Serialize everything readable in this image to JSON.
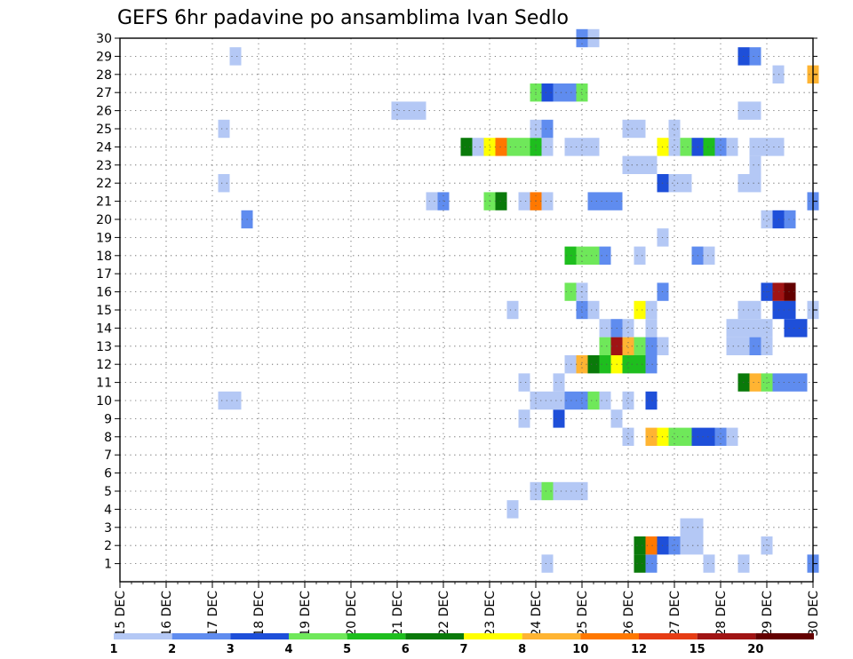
{
  "chart_data": {
    "type": "heatmap",
    "title": "GEFS 6hr padavine po ansamblima Ivan Sedlo",
    "xlabel": "",
    "ylabel": "",
    "x_ticks": [
      "15 DEC",
      "16 DEC",
      "17 DEC",
      "18 DEC",
      "19 DEC",
      "20 DEC",
      "21 DEC",
      "22 DEC",
      "23 DEC",
      "24 DEC",
      "25 DEC",
      "26 DEC",
      "27 DEC",
      "28 DEC",
      "29 DEC",
      "30 DEC"
    ],
    "y_ticks": [
      "1",
      "2",
      "3",
      "4",
      "5",
      "6",
      "7",
      "8",
      "9",
      "10",
      "11",
      "12",
      "13",
      "14",
      "15",
      "16",
      "17",
      "18",
      "19",
      "20",
      "21",
      "22",
      "23",
      "24",
      "25",
      "26",
      "27",
      "28",
      "29",
      "30"
    ],
    "x_range_steps": [
      0,
      60
    ],
    "steps_per_day": 4,
    "members": [
      1,
      30
    ],
    "grid": true,
    "colorbar": {
      "labels": [
        "1",
        "2",
        "3",
        "4",
        "5",
        "6",
        "7",
        "8",
        "10",
        "12",
        "15",
        "20"
      ],
      "colors": [
        "#b4c8f5",
        "#5f8cef",
        "#1e4fd9",
        "#6fe85a",
        "#1ebe1e",
        "#0a7a0a",
        "#ffff00",
        "#ffb432",
        "#ff7800",
        "#e63c14",
        "#a01414",
        "#640000"
      ]
    },
    "cells": [
      [
        1,
        "#b4c8f5",
        37
      ],
      [
        1,
        "#0a7a0a",
        45
      ],
      [
        1,
        "#5f8cef",
        46
      ],
      [
        1,
        "#b4c8f5",
        51
      ],
      [
        1,
        "#b4c8f5",
        54
      ],
      [
        1,
        "#5f8cef",
        60
      ],
      [
        2,
        "#0a7a0a",
        45
      ],
      [
        2,
        "#ff7800",
        46
      ],
      [
        2,
        "#1e4fd9",
        47
      ],
      [
        2,
        "#5f8cef",
        48
      ],
      [
        2,
        "#b4c8f5",
        49
      ],
      [
        2,
        "#b4c8f5",
        50
      ],
      [
        2,
        "#b4c8f5",
        56
      ],
      [
        3,
        "#b4c8f5",
        49
      ],
      [
        3,
        "#b4c8f5",
        50
      ],
      [
        4,
        "#b4c8f5",
        34
      ],
      [
        5,
        "#b4c8f5",
        36
      ],
      [
        5,
        "#6fe85a",
        37
      ],
      [
        5,
        "#b4c8f5",
        38
      ],
      [
        5,
        "#b4c8f5",
        39
      ],
      [
        5,
        "#b4c8f5",
        40
      ],
      [
        8,
        "#b4c8f5",
        44
      ],
      [
        8,
        "#ffb432",
        46
      ],
      [
        8,
        "#ffff00",
        47
      ],
      [
        8,
        "#6fe85a",
        48
      ],
      [
        8,
        "#6fe85a",
        49
      ],
      [
        8,
        "#1e4fd9",
        50
      ],
      [
        8,
        "#1e4fd9",
        51
      ],
      [
        8,
        "#5f8cef",
        52
      ],
      [
        8,
        "#b4c8f5",
        53
      ],
      [
        9,
        "#b4c8f5",
        35
      ],
      [
        9,
        "#1e4fd9",
        38
      ],
      [
        9,
        "#b4c8f5",
        43
      ],
      [
        10,
        "#b4c8f5",
        9
      ],
      [
        10,
        "#b4c8f5",
        10
      ],
      [
        10,
        "#b4c8f5",
        36
      ],
      [
        10,
        "#b4c8f5",
        37
      ],
      [
        10,
        "#b4c8f5",
        38
      ],
      [
        10,
        "#5f8cef",
        39
      ],
      [
        10,
        "#5f8cef",
        40
      ],
      [
        10,
        "#6fe85a",
        41
      ],
      [
        10,
        "#b4c8f5",
        42
      ],
      [
        10,
        "#b4c8f5",
        44
      ],
      [
        10,
        "#1e4fd9",
        46
      ],
      [
        11,
        "#b4c8f5",
        35
      ],
      [
        11,
        "#b4c8f5",
        38
      ],
      [
        11,
        "#0a7a0a",
        54
      ],
      [
        11,
        "#ffb432",
        55
      ],
      [
        11,
        "#6fe85a",
        56
      ],
      [
        11,
        "#5f8cef",
        57
      ],
      [
        11,
        "#5f8cef",
        58
      ],
      [
        11,
        "#5f8cef",
        59
      ],
      [
        12,
        "#b4c8f5",
        39
      ],
      [
        12,
        "#ffb432",
        40
      ],
      [
        12,
        "#0a7a0a",
        41
      ],
      [
        12,
        "#1ebe1e",
        42
      ],
      [
        12,
        "#ffff00",
        43
      ],
      [
        12,
        "#1ebe1e",
        44
      ],
      [
        12,
        "#1ebe1e",
        45
      ],
      [
        12,
        "#5f8cef",
        46
      ],
      [
        13,
        "#6fe85a",
        42
      ],
      [
        13,
        "#a01414",
        43
      ],
      [
        13,
        "#ffb432",
        44
      ],
      [
        13,
        "#6fe85a",
        45
      ],
      [
        13,
        "#5f8cef",
        46
      ],
      [
        13,
        "#b4c8f5",
        47
      ],
      [
        13,
        "#b4c8f5",
        53
      ],
      [
        13,
        "#b4c8f5",
        54
      ],
      [
        13,
        "#5f8cef",
        55
      ],
      [
        13,
        "#b4c8f5",
        56
      ],
      [
        14,
        "#b4c8f5",
        42
      ],
      [
        14,
        "#5f8cef",
        43
      ],
      [
        14,
        "#b4c8f5",
        44
      ],
      [
        14,
        "#b4c8f5",
        46
      ],
      [
        14,
        "#b4c8f5",
        53
      ],
      [
        14,
        "#b4c8f5",
        54
      ],
      [
        14,
        "#b4c8f5",
        55
      ],
      [
        14,
        "#b4c8f5",
        56
      ],
      [
        14,
        "#1e4fd9",
        58
      ],
      [
        14,
        "#1e4fd9",
        59
      ],
      [
        15,
        "#b4c8f5",
        34
      ],
      [
        15,
        "#5f8cef",
        40
      ],
      [
        15,
        "#b4c8f5",
        41
      ],
      [
        15,
        "#ffff00",
        45
      ],
      [
        15,
        "#b4c8f5",
        46
      ],
      [
        15,
        "#b4c8f5",
        54
      ],
      [
        15,
        "#b4c8f5",
        55
      ],
      [
        15,
        "#1e4fd9",
        57
      ],
      [
        15,
        "#1e4fd9",
        58
      ],
      [
        15,
        "#b4c8f5",
        60
      ],
      [
        16,
        "#6fe85a",
        39
      ],
      [
        16,
        "#b4c8f5",
        40
      ],
      [
        16,
        "#5f8cef",
        47
      ],
      [
        16,
        "#1e4fd9",
        56
      ],
      [
        16,
        "#a01414",
        57
      ],
      [
        16,
        "#640000",
        58
      ],
      [
        18,
        "#1ebe1e",
        39
      ],
      [
        18,
        "#6fe85a",
        40
      ],
      [
        18,
        "#6fe85a",
        41
      ],
      [
        18,
        "#5f8cef",
        42
      ],
      [
        18,
        "#b4c8f5",
        45
      ],
      [
        18,
        "#5f8cef",
        50
      ],
      [
        18,
        "#b4c8f5",
        51
      ],
      [
        19,
        "#b4c8f5",
        47
      ],
      [
        20,
        "#5f8cef",
        11
      ],
      [
        20,
        "#b4c8f5",
        56
      ],
      [
        20,
        "#1e4fd9",
        57
      ],
      [
        20,
        "#5f8cef",
        58
      ],
      [
        21,
        "#b4c8f5",
        27
      ],
      [
        21,
        "#5f8cef",
        28
      ],
      [
        21,
        "#6fe85a",
        32
      ],
      [
        21,
        "#0a7a0a",
        33
      ],
      [
        21,
        "#b4c8f5",
        35
      ],
      [
        21,
        "#ff7800",
        36
      ],
      [
        21,
        "#b4c8f5",
        37
      ],
      [
        21,
        "#5f8cef",
        41
      ],
      [
        21,
        "#5f8cef",
        42
      ],
      [
        21,
        "#5f8cef",
        43
      ],
      [
        21,
        "#5f8cef",
        60
      ],
      [
        22,
        "#b4c8f5",
        9
      ],
      [
        22,
        "#1e4fd9",
        47
      ],
      [
        22,
        "#b4c8f5",
        48
      ],
      [
        22,
        "#b4c8f5",
        49
      ],
      [
        22,
        "#b4c8f5",
        54
      ],
      [
        22,
        "#b4c8f5",
        55
      ],
      [
        23,
        "#b4c8f5",
        44
      ],
      [
        23,
        "#b4c8f5",
        45
      ],
      [
        23,
        "#b4c8f5",
        46
      ],
      [
        23,
        "#b4c8f5",
        55
      ],
      [
        24,
        "#0a7a0a",
        30
      ],
      [
        24,
        "#b4c8f5",
        31
      ],
      [
        24,
        "#ffff00",
        32
      ],
      [
        24,
        "#ff7800",
        33
      ],
      [
        24,
        "#6fe85a",
        34
      ],
      [
        24,
        "#6fe85a",
        35
      ],
      [
        24,
        "#1ebe1e",
        36
      ],
      [
        24,
        "#b4c8f5",
        37
      ],
      [
        24,
        "#b4c8f5",
        39
      ],
      [
        24,
        "#b4c8f5",
        40
      ],
      [
        24,
        "#b4c8f5",
        41
      ],
      [
        24,
        "#ffff00",
        47
      ],
      [
        24,
        "#b4c8f5",
        48
      ],
      [
        24,
        "#6fe85a",
        49
      ],
      [
        24,
        "#1e4fd9",
        50
      ],
      [
        24,
        "#1ebe1e",
        51
      ],
      [
        24,
        "#5f8cef",
        52
      ],
      [
        24,
        "#b4c8f5",
        53
      ],
      [
        24,
        "#b4c8f5",
        55
      ],
      [
        24,
        "#b4c8f5",
        56
      ],
      [
        24,
        "#b4c8f5",
        57
      ],
      [
        25,
        "#b4c8f5",
        9
      ],
      [
        25,
        "#b4c8f5",
        36
      ],
      [
        25,
        "#5f8cef",
        37
      ],
      [
        25,
        "#b4c8f5",
        44
      ],
      [
        25,
        "#b4c8f5",
        45
      ],
      [
        25,
        "#b4c8f5",
        48
      ],
      [
        26,
        "#b4c8f5",
        24
      ],
      [
        26,
        "#b4c8f5",
        25
      ],
      [
        26,
        "#b4c8f5",
        26
      ],
      [
        26,
        "#b4c8f5",
        54
      ],
      [
        26,
        "#b4c8f5",
        55
      ],
      [
        27,
        "#6fe85a",
        36
      ],
      [
        27,
        "#1e4fd9",
        37
      ],
      [
        27,
        "#5f8cef",
        38
      ],
      [
        27,
        "#5f8cef",
        39
      ],
      [
        27,
        "#6fe85a",
        40
      ],
      [
        28,
        "#b4c8f5",
        57
      ],
      [
        28,
        "#ffb432",
        60
      ],
      [
        29,
        "#b4c8f5",
        10
      ],
      [
        29,
        "#1e4fd9",
        54
      ],
      [
        29,
        "#5f8cef",
        55
      ],
      [
        30,
        "#5f8cef",
        40
      ],
      [
        30,
        "#b4c8f5",
        41
      ]
    ]
  }
}
